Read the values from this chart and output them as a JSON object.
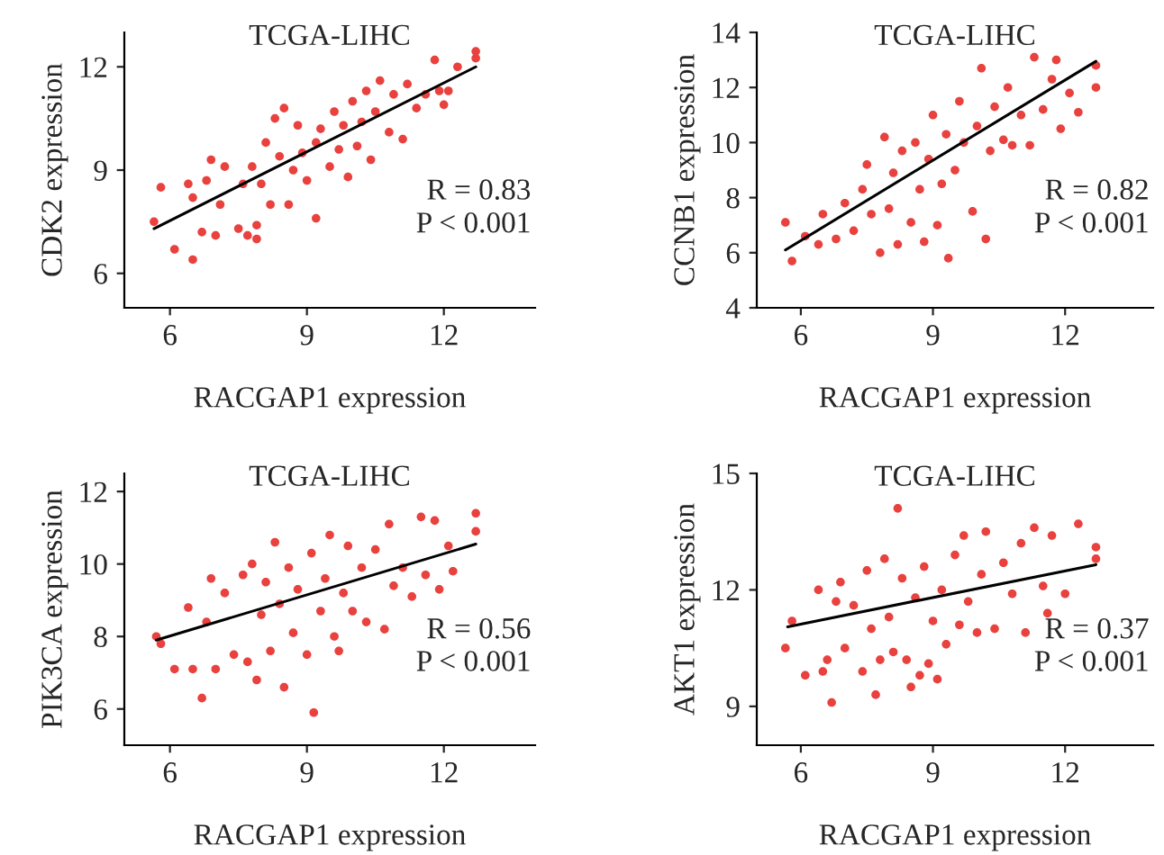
{
  "chart_data": [
    {
      "type": "scatter",
      "title": "TCGA-LIHC",
      "xlabel": "RACGAP1 expression",
      "ylabel": "CDK2 expression",
      "xlim": [
        5,
        14
      ],
      "ylim": [
        5,
        13
      ],
      "xticks": [
        6,
        9,
        12
      ],
      "yticks": [
        6,
        9,
        12
      ],
      "grid": false,
      "legend": false,
      "marker": "circle",
      "annotations": [
        "R = 0.83",
        "P < 0.001"
      ],
      "series": [
        {
          "color": "#e8413e",
          "x": [
            5.65,
            5.8,
            6.1,
            6.5,
            6.4,
            6.5,
            6.7,
            6.8,
            6.9,
            7.0,
            7.1,
            7.2,
            7.5,
            7.6,
            7.7,
            7.8,
            7.9,
            7.9,
            8.0,
            8.1,
            8.2,
            8.3,
            8.4,
            8.5,
            8.6,
            8.7,
            8.8,
            8.9,
            9.0,
            9.2,
            9.2,
            9.3,
            9.5,
            9.6,
            9.7,
            9.8,
            9.9,
            10.0,
            10.1,
            10.2,
            10.3,
            10.4,
            10.5,
            10.6,
            10.8,
            10.9,
            11.1,
            11.2,
            11.4,
            11.6,
            11.8,
            11.9,
            12.0,
            12.1,
            12.3,
            12.7,
            12.7
          ],
          "values": [
            7.5,
            8.5,
            6.7,
            6.4,
            8.6,
            8.2,
            7.2,
            8.7,
            9.3,
            7.1,
            8.0,
            9.1,
            7.3,
            8.6,
            7.1,
            9.1,
            7.0,
            7.4,
            8.6,
            9.8,
            8.0,
            10.5,
            9.4,
            10.8,
            8.0,
            9.0,
            10.3,
            9.5,
            8.7,
            7.6,
            9.8,
            10.2,
            9.1,
            10.7,
            9.6,
            10.3,
            8.8,
            11.0,
            9.7,
            10.4,
            11.3,
            9.3,
            10.7,
            11.6,
            10.1,
            11.2,
            9.9,
            11.5,
            10.8,
            11.2,
            12.2,
            11.3,
            10.9,
            11.3,
            12.0,
            12.25,
            12.45
          ]
        },
        {
          "type": "line",
          "color": "#000000",
          "x": [
            5.65,
            12.7
          ],
          "values": [
            7.3,
            12.0
          ],
          "marker": "none"
        }
      ]
    },
    {
      "type": "scatter",
      "title": "TCGA-LIHC",
      "xlabel": "RACGAP1 expression",
      "ylabel": "CCNB1 expression",
      "xlim": [
        5,
        14
      ],
      "ylim": [
        4,
        14
      ],
      "xticks": [
        6,
        9,
        12
      ],
      "yticks": [
        4,
        6,
        8,
        10,
        12,
        14
      ],
      "grid": false,
      "legend": false,
      "marker": "circle",
      "annotations": [
        "R = 0.82",
        "P < 0.001"
      ],
      "series": [
        {
          "color": "#e8413e",
          "x": [
            5.65,
            5.8,
            6.1,
            6.4,
            6.5,
            6.8,
            7.0,
            7.2,
            7.4,
            7.5,
            7.6,
            7.8,
            7.9,
            8.0,
            8.1,
            8.2,
            8.3,
            8.5,
            8.6,
            8.7,
            8.8,
            8.9,
            9.0,
            9.1,
            9.2,
            9.3,
            9.35,
            9.5,
            9.6,
            9.7,
            9.9,
            10.0,
            10.1,
            10.2,
            10.3,
            10.4,
            10.6,
            10.7,
            10.8,
            11.0,
            11.2,
            11.3,
            11.5,
            11.7,
            11.8,
            11.9,
            12.1,
            12.3,
            12.7,
            12.7
          ],
          "values": [
            7.1,
            5.7,
            6.6,
            6.3,
            7.4,
            6.5,
            7.8,
            6.8,
            8.3,
            9.2,
            7.4,
            6.0,
            10.2,
            7.6,
            8.9,
            6.3,
            9.7,
            7.1,
            10.0,
            8.3,
            6.4,
            9.4,
            11.0,
            7.0,
            8.5,
            10.3,
            5.8,
            9.0,
            11.5,
            10.0,
            7.5,
            10.6,
            12.7,
            6.5,
            9.7,
            11.3,
            10.1,
            12.0,
            9.9,
            11.0,
            9.9,
            13.1,
            11.2,
            12.3,
            13.0,
            10.5,
            11.8,
            11.1,
            12.8,
            12.0
          ]
        },
        {
          "type": "line",
          "color": "#000000",
          "x": [
            5.65,
            12.7
          ],
          "values": [
            6.1,
            12.95
          ],
          "marker": "none"
        }
      ]
    },
    {
      "type": "scatter",
      "title": "TCGA-LIHC",
      "xlabel": "RACGAP1 expression",
      "ylabel": "PIK3CA expression",
      "xlim": [
        5,
        14
      ],
      "ylim": [
        5,
        12.5
      ],
      "xticks": [
        6,
        9,
        12
      ],
      "yticks": [
        6,
        8,
        10,
        12
      ],
      "grid": false,
      "legend": false,
      "marker": "circle",
      "annotations": [
        "R = 0.56",
        "P < 0.001"
      ],
      "series": [
        {
          "color": "#e8413e",
          "x": [
            5.7,
            5.8,
            6.1,
            6.4,
            6.5,
            6.7,
            6.8,
            6.9,
            7.0,
            7.2,
            7.4,
            7.6,
            7.7,
            7.8,
            7.9,
            8.0,
            8.1,
            8.2,
            8.3,
            8.4,
            8.5,
            8.6,
            8.7,
            8.8,
            9.0,
            9.1,
            9.15,
            9.3,
            9.4,
            9.5,
            9.6,
            9.7,
            9.8,
            9.9,
            10.0,
            10.2,
            10.3,
            10.5,
            10.7,
            10.8,
            10.9,
            11.1,
            11.3,
            11.5,
            11.6,
            11.8,
            11.9,
            12.1,
            12.2,
            12.7,
            12.7
          ],
          "values": [
            8.0,
            7.8,
            7.1,
            8.8,
            7.1,
            6.3,
            8.4,
            9.6,
            7.1,
            9.2,
            7.5,
            9.7,
            7.3,
            10.0,
            6.8,
            8.6,
            9.5,
            7.6,
            10.6,
            8.9,
            6.6,
            9.9,
            8.1,
            9.3,
            7.5,
            10.3,
            5.9,
            8.7,
            9.6,
            10.8,
            8.0,
            7.6,
            9.2,
            10.5,
            8.7,
            9.9,
            8.4,
            10.4,
            8.2,
            11.1,
            9.4,
            9.9,
            9.1,
            11.3,
            9.7,
            11.2,
            9.3,
            10.5,
            9.8,
            11.4,
            10.9
          ]
        },
        {
          "type": "line",
          "color": "#000000",
          "x": [
            5.7,
            12.7
          ],
          "values": [
            7.9,
            10.55
          ],
          "marker": "none"
        }
      ]
    },
    {
      "type": "scatter",
      "title": "TCGA-LIHC",
      "xlabel": "RACGAP1 expression",
      "ylabel": "AKT1 expression",
      "xlim": [
        5,
        14
      ],
      "ylim": [
        8,
        15
      ],
      "xticks": [
        6,
        9,
        12
      ],
      "yticks": [
        9,
        12,
        15
      ],
      "grid": false,
      "legend": false,
      "marker": "circle",
      "annotations": [
        "R = 0.37",
        "P < 0.001"
      ],
      "series": [
        {
          "color": "#e8413e",
          "x": [
            5.65,
            5.8,
            6.1,
            6.4,
            6.5,
            6.6,
            6.7,
            6.8,
            6.9,
            7.0,
            7.2,
            7.4,
            7.5,
            7.6,
            7.7,
            7.8,
            7.9,
            8.0,
            8.1,
            8.2,
            8.3,
            8.4,
            8.5,
            8.6,
            8.7,
            8.8,
            8.9,
            9.0,
            9.1,
            9.2,
            9.3,
            9.5,
            9.6,
            9.7,
            9.8,
            10.0,
            10.1,
            10.2,
            10.4,
            10.6,
            10.8,
            11.0,
            11.1,
            11.3,
            11.5,
            11.6,
            11.7,
            12.0,
            12.3,
            12.7,
            12.7
          ],
          "values": [
            10.5,
            11.2,
            9.8,
            12.0,
            9.9,
            10.2,
            9.1,
            11.7,
            12.2,
            10.5,
            11.6,
            9.9,
            12.5,
            11.0,
            9.3,
            10.2,
            12.8,
            11.3,
            10.4,
            14.1,
            12.3,
            10.2,
            9.5,
            11.8,
            9.8,
            12.6,
            10.1,
            11.2,
            9.7,
            12.0,
            10.6,
            12.9,
            11.1,
            13.4,
            11.7,
            10.9,
            12.4,
            13.5,
            11.0,
            12.7,
            11.9,
            13.2,
            10.9,
            13.6,
            12.1,
            11.4,
            13.4,
            11.9,
            13.7,
            13.1,
            12.8
          ]
        },
        {
          "type": "line",
          "color": "#000000",
          "x": [
            5.7,
            12.7
          ],
          "values": [
            11.05,
            12.65
          ],
          "marker": "none"
        }
      ]
    }
  ]
}
